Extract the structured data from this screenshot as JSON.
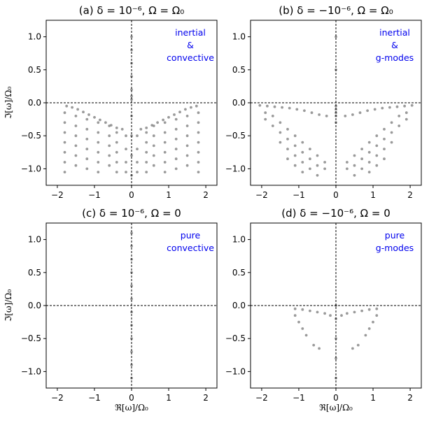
{
  "accent_color": "#0000ee",
  "marker_color": "#888888",
  "chart_data": [
    {
      "type": "scatter",
      "title": "(a) δ = 10⁻⁶, Ω = Ω₀",
      "xlabel": "",
      "ylabel": "ℑ[ω]/Ω₀",
      "xlim": [
        -2.3,
        2.3
      ],
      "ylim": [
        -1.25,
        1.25
      ],
      "xticks": [
        -2,
        -1,
        0,
        1,
        2
      ],
      "yticks": [
        1.0,
        0.5,
        0.0,
        -0.5,
        -1.0
      ],
      "xticklabels": [
        "−2",
        "−1",
        "0",
        "1",
        "2"
      ],
      "yticklabels": [
        "1.0",
        "0.5",
        "0.0",
        "−0.5",
        "−1.0"
      ],
      "annotation": [
        "inertial",
        "&",
        "convective"
      ],
      "dashed_reference_lines": {
        "x": 0,
        "y": 0
      },
      "points": [
        [
          -1.75,
          -0.05
        ],
        [
          -1.6,
          -0.07
        ],
        [
          -1.45,
          -0.1
        ],
        [
          -1.3,
          -0.14
        ],
        [
          -1.15,
          -0.18
        ],
        [
          -1.0,
          -0.22
        ],
        [
          -0.85,
          -0.26
        ],
        [
          -0.7,
          -0.3
        ],
        [
          -0.55,
          -0.34
        ],
        [
          -0.4,
          -0.38
        ],
        [
          -0.25,
          -0.4
        ],
        [
          -1.8,
          -0.15
        ],
        [
          -1.8,
          -0.3
        ],
        [
          -1.8,
          -0.45
        ],
        [
          -1.8,
          -0.6
        ],
        [
          -1.8,
          -0.75
        ],
        [
          -1.8,
          -0.9
        ],
        [
          -1.8,
          -1.05
        ],
        [
          -1.5,
          -0.2
        ],
        [
          -1.5,
          -0.35
        ],
        [
          -1.5,
          -0.5
        ],
        [
          -1.5,
          -0.65
        ],
        [
          -1.5,
          -0.8
        ],
        [
          -1.5,
          -0.95
        ],
        [
          -1.2,
          -0.25
        ],
        [
          -1.2,
          -0.4
        ],
        [
          -1.2,
          -0.55
        ],
        [
          -1.2,
          -0.7
        ],
        [
          -1.2,
          -0.85
        ],
        [
          -1.2,
          -1.0
        ],
        [
          -0.9,
          -0.3
        ],
        [
          -0.9,
          -0.45
        ],
        [
          -0.9,
          -0.6
        ],
        [
          -0.9,
          -0.75
        ],
        [
          -0.9,
          -0.9
        ],
        [
          -0.9,
          -1.05
        ],
        [
          -0.6,
          -0.35
        ],
        [
          -0.6,
          -0.5
        ],
        [
          -0.6,
          -0.65
        ],
        [
          -0.6,
          -0.8
        ],
        [
          -0.6,
          -0.95
        ],
        [
          -0.4,
          -0.45
        ],
        [
          -0.4,
          -0.6
        ],
        [
          -0.4,
          -0.75
        ],
        [
          -0.4,
          -0.9
        ],
        [
          -0.4,
          -1.05
        ],
        [
          -0.15,
          -0.5
        ],
        [
          -0.15,
          -0.7
        ],
        [
          -0.15,
          -0.9
        ],
        [
          -0.15,
          -1.05
        ],
        [
          0.25,
          -0.4
        ],
        [
          0.4,
          -0.38
        ],
        [
          0.55,
          -0.34
        ],
        [
          0.7,
          -0.3
        ],
        [
          0.85,
          -0.26
        ],
        [
          1.0,
          -0.22
        ],
        [
          1.15,
          -0.18
        ],
        [
          1.3,
          -0.14
        ],
        [
          1.45,
          -0.1
        ],
        [
          1.6,
          -0.07
        ],
        [
          1.75,
          -0.05
        ],
        [
          1.8,
          -0.15
        ],
        [
          1.8,
          -0.3
        ],
        [
          1.8,
          -0.45
        ],
        [
          1.8,
          -0.6
        ],
        [
          1.8,
          -0.75
        ],
        [
          1.8,
          -0.9
        ],
        [
          1.8,
          -1.05
        ],
        [
          1.5,
          -0.2
        ],
        [
          1.5,
          -0.35
        ],
        [
          1.5,
          -0.5
        ],
        [
          1.5,
          -0.65
        ],
        [
          1.5,
          -0.8
        ],
        [
          1.5,
          -0.95
        ],
        [
          1.2,
          -0.25
        ],
        [
          1.2,
          -0.4
        ],
        [
          1.2,
          -0.55
        ],
        [
          1.2,
          -0.7
        ],
        [
          1.2,
          -0.85
        ],
        [
          1.2,
          -1.0
        ],
        [
          0.9,
          -0.3
        ],
        [
          0.9,
          -0.45
        ],
        [
          0.9,
          -0.6
        ],
        [
          0.9,
          -0.75
        ],
        [
          0.9,
          -0.9
        ],
        [
          0.9,
          -1.05
        ],
        [
          0.6,
          -0.35
        ],
        [
          0.6,
          -0.5
        ],
        [
          0.6,
          -0.65
        ],
        [
          0.6,
          -0.8
        ],
        [
          0.6,
          -0.95
        ],
        [
          0.4,
          -0.45
        ],
        [
          0.4,
          -0.6
        ],
        [
          0.4,
          -0.75
        ],
        [
          0.4,
          -0.9
        ],
        [
          0.4,
          -1.05
        ],
        [
          0.15,
          -0.5
        ],
        [
          0.15,
          -0.7
        ],
        [
          0.15,
          -0.9
        ],
        [
          0.15,
          -1.05
        ],
        [
          0.0,
          1.0
        ],
        [
          0.0,
          0.8
        ],
        [
          0.0,
          0.6
        ],
        [
          0.0,
          0.4
        ],
        [
          0.0,
          0.2
        ],
        [
          0.0,
          0.1
        ],
        [
          0.0,
          0.05
        ],
        [
          0.0,
          -0.2
        ],
        [
          0.0,
          -0.5
        ],
        [
          0.0,
          -0.8
        ],
        [
          0.0,
          -1.1
        ]
      ]
    },
    {
      "type": "scatter",
      "title": "(b) δ = −10⁻⁶, Ω = Ω₀",
      "xlabel": "",
      "ylabel": "",
      "xlim": [
        -2.3,
        2.3
      ],
      "ylim": [
        -1.25,
        1.25
      ],
      "xticks": [
        -2,
        -1,
        0,
        1,
        2
      ],
      "yticks": [
        1.0,
        0.5,
        0.0,
        -0.5,
        -1.0
      ],
      "xticklabels": [
        "−2",
        "−1",
        "0",
        "1",
        "2"
      ],
      "yticklabels": [
        "1.0",
        "0.5",
        "0.0",
        "−0.5",
        "−1.0"
      ],
      "annotation": [
        "inertial",
        "&",
        "g-modes"
      ],
      "dashed_reference_lines": {
        "x": 0,
        "y": 0
      },
      "points": [
        [
          -2.05,
          -0.04
        ],
        [
          -1.85,
          -0.05
        ],
        [
          -1.65,
          -0.06
        ],
        [
          -1.45,
          -0.07
        ],
        [
          -1.25,
          -0.08
        ],
        [
          -1.05,
          -0.1
        ],
        [
          -0.85,
          -0.12
        ],
        [
          -0.65,
          -0.15
        ],
        [
          -0.45,
          -0.18
        ],
        [
          -0.25,
          -0.2
        ],
        [
          -1.9,
          -0.15
        ],
        [
          -1.9,
          -0.25
        ],
        [
          -1.7,
          -0.2
        ],
        [
          -1.7,
          -0.35
        ],
        [
          -1.5,
          -0.3
        ],
        [
          -1.5,
          -0.45
        ],
        [
          -1.5,
          -0.6
        ],
        [
          -1.3,
          -0.4
        ],
        [
          -1.3,
          -0.55
        ],
        [
          -1.3,
          -0.7
        ],
        [
          -1.3,
          -0.85
        ],
        [
          -1.1,
          -0.5
        ],
        [
          -1.1,
          -0.65
        ],
        [
          -1.1,
          -0.8
        ],
        [
          -1.1,
          -0.95
        ],
        [
          -0.9,
          -0.6
        ],
        [
          -0.9,
          -0.75
        ],
        [
          -0.9,
          -0.9
        ],
        [
          -0.9,
          -1.05
        ],
        [
          -0.7,
          -0.7
        ],
        [
          -0.7,
          -0.85
        ],
        [
          -0.7,
          -1.0
        ],
        [
          -0.5,
          -0.8
        ],
        [
          -0.5,
          -0.95
        ],
        [
          -0.5,
          -1.1
        ],
        [
          -0.3,
          -0.9
        ],
        [
          -0.3,
          -1.0
        ],
        [
          0.25,
          -0.2
        ],
        [
          0.45,
          -0.18
        ],
        [
          0.65,
          -0.15
        ],
        [
          0.85,
          -0.12
        ],
        [
          1.05,
          -0.1
        ],
        [
          1.25,
          -0.08
        ],
        [
          1.45,
          -0.07
        ],
        [
          1.65,
          -0.06
        ],
        [
          1.85,
          -0.05
        ],
        [
          2.05,
          -0.04
        ],
        [
          1.9,
          -0.15
        ],
        [
          1.9,
          -0.25
        ],
        [
          1.7,
          -0.2
        ],
        [
          1.7,
          -0.35
        ],
        [
          1.5,
          -0.3
        ],
        [
          1.5,
          -0.45
        ],
        [
          1.5,
          -0.6
        ],
        [
          1.3,
          -0.4
        ],
        [
          1.3,
          -0.55
        ],
        [
          1.3,
          -0.7
        ],
        [
          1.3,
          -0.85
        ],
        [
          1.1,
          -0.5
        ],
        [
          1.1,
          -0.65
        ],
        [
          1.1,
          -0.8
        ],
        [
          1.1,
          -0.95
        ],
        [
          0.9,
          -0.6
        ],
        [
          0.9,
          -0.75
        ],
        [
          0.9,
          -0.9
        ],
        [
          0.9,
          -1.05
        ],
        [
          0.7,
          -0.7
        ],
        [
          0.7,
          -0.85
        ],
        [
          0.7,
          -1.0
        ],
        [
          0.5,
          -0.8
        ],
        [
          0.5,
          -0.95
        ],
        [
          0.5,
          -1.1
        ],
        [
          0.3,
          -0.9
        ],
        [
          0.3,
          -1.0
        ],
        [
          0.0,
          1.0
        ],
        [
          0.0,
          0.5
        ],
        [
          0.0,
          -0.05
        ],
        [
          0.0,
          -0.1
        ],
        [
          0.0,
          -0.15
        ],
        [
          0.0,
          -0.2
        ],
        [
          0.0,
          -0.3
        ]
      ]
    },
    {
      "type": "scatter",
      "title": "(c) δ = 10⁻⁶, Ω = 0",
      "xlabel": "ℜ[ω]/Ω₀",
      "ylabel": "ℑ[ω]/Ω₀",
      "xlim": [
        -2.3,
        2.3
      ],
      "ylim": [
        -1.25,
        1.25
      ],
      "xticks": [
        -2,
        -1,
        0,
        1,
        2
      ],
      "yticks": [
        1.0,
        0.5,
        0.0,
        -0.5,
        -1.0
      ],
      "xticklabels": [
        "−2",
        "−1",
        "0",
        "1",
        "2"
      ],
      "yticklabels": [
        "1.0",
        "0.5",
        "0.0",
        "−0.5",
        "−1.0"
      ],
      "annotation": [
        "pure",
        "convective"
      ],
      "dashed_reference_lines": {
        "x": 0,
        "y": 0
      },
      "points": [
        [
          0.0,
          1.1
        ],
        [
          0.0,
          0.9
        ],
        [
          0.0,
          0.7
        ],
        [
          0.0,
          0.5
        ],
        [
          0.0,
          0.3
        ],
        [
          0.0,
          0.1
        ],
        [
          0.0,
          -0.1
        ],
        [
          0.0,
          -0.3
        ],
        [
          0.0,
          -0.5
        ],
        [
          0.0,
          -0.7
        ],
        [
          0.0,
          -0.9
        ],
        [
          0.0,
          -1.1
        ]
      ]
    },
    {
      "type": "scatter",
      "title": "(d) δ = −10⁻⁶, Ω = 0",
      "xlabel": "ℜ[ω]/Ω₀",
      "ylabel": "",
      "xlim": [
        -2.3,
        2.3
      ],
      "ylim": [
        -1.25,
        1.25
      ],
      "xticks": [
        -2,
        -1,
        0,
        1,
        2
      ],
      "yticks": [
        1.0,
        0.5,
        0.0,
        -0.5,
        -1.0
      ],
      "xticklabels": [
        "−2",
        "−1",
        "0",
        "1",
        "2"
      ],
      "yticklabels": [
        "1.0",
        "0.5",
        "0.0",
        "−0.5",
        "−1.0"
      ],
      "annotation": [
        "pure",
        "g-modes"
      ],
      "dashed_reference_lines": {
        "x": 0,
        "y": 0
      },
      "points": [
        [
          -1.1,
          -0.05
        ],
        [
          -0.9,
          -0.06
        ],
        [
          -0.7,
          -0.08
        ],
        [
          -0.5,
          -0.1
        ],
        [
          -0.3,
          -0.12
        ],
        [
          -0.15,
          -0.15
        ],
        [
          -1.1,
          -0.15
        ],
        [
          -1.0,
          -0.25
        ],
        [
          -0.9,
          -0.35
        ],
        [
          -0.8,
          -0.45
        ],
        [
          -0.6,
          -0.6
        ],
        [
          -0.45,
          -0.65
        ],
        [
          1.1,
          -0.05
        ],
        [
          0.9,
          -0.06
        ],
        [
          0.7,
          -0.08
        ],
        [
          0.5,
          -0.1
        ],
        [
          0.3,
          -0.12
        ],
        [
          0.15,
          -0.15
        ],
        [
          1.1,
          -0.15
        ],
        [
          1.0,
          -0.25
        ],
        [
          0.9,
          -0.35
        ],
        [
          0.8,
          -0.45
        ],
        [
          0.6,
          -0.6
        ],
        [
          0.45,
          -0.65
        ],
        [
          0.0,
          0.0
        ],
        [
          0.0,
          -0.2
        ],
        [
          0.0,
          -0.5
        ],
        [
          0.0,
          -0.8
        ],
        [
          0.0,
          -1.1
        ]
      ]
    }
  ]
}
